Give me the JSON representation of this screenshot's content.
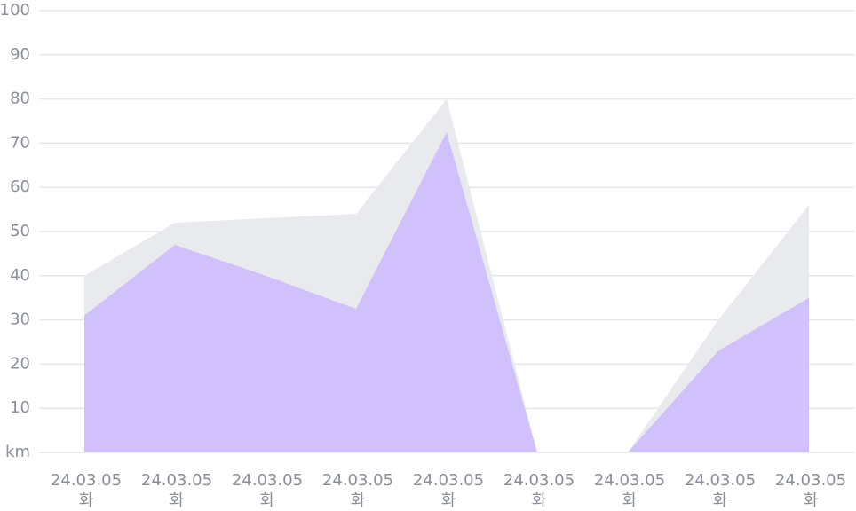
{
  "chart_data": {
    "type": "area",
    "categories": [
      "24.03.05",
      "24.03.05",
      "24.03.05",
      "24.03.05",
      "24.03.05",
      "24.03.05",
      "24.03.05",
      "24.03.05",
      "24.03.05"
    ],
    "category_sublabels": [
      "화",
      "화",
      "화",
      "화",
      "화",
      "화",
      "화",
      "화",
      "화"
    ],
    "series": [
      {
        "color": "#e8eaed",
        "values": [
          40,
          52,
          53,
          54,
          80,
          0,
          0,
          30,
          56
        ]
      },
      {
        "color": "#d0c0fb",
        "values": [
          31,
          47,
          40,
          32.5,
          72.5,
          0,
          0,
          23,
          35
        ]
      }
    ],
    "ylim": [
      0,
      100
    ],
    "yticks": [
      {
        "value": 0,
        "label": "km"
      },
      10,
      20,
      30,
      40,
      50,
      60,
      70,
      80,
      90,
      100
    ],
    "grid": true
  }
}
